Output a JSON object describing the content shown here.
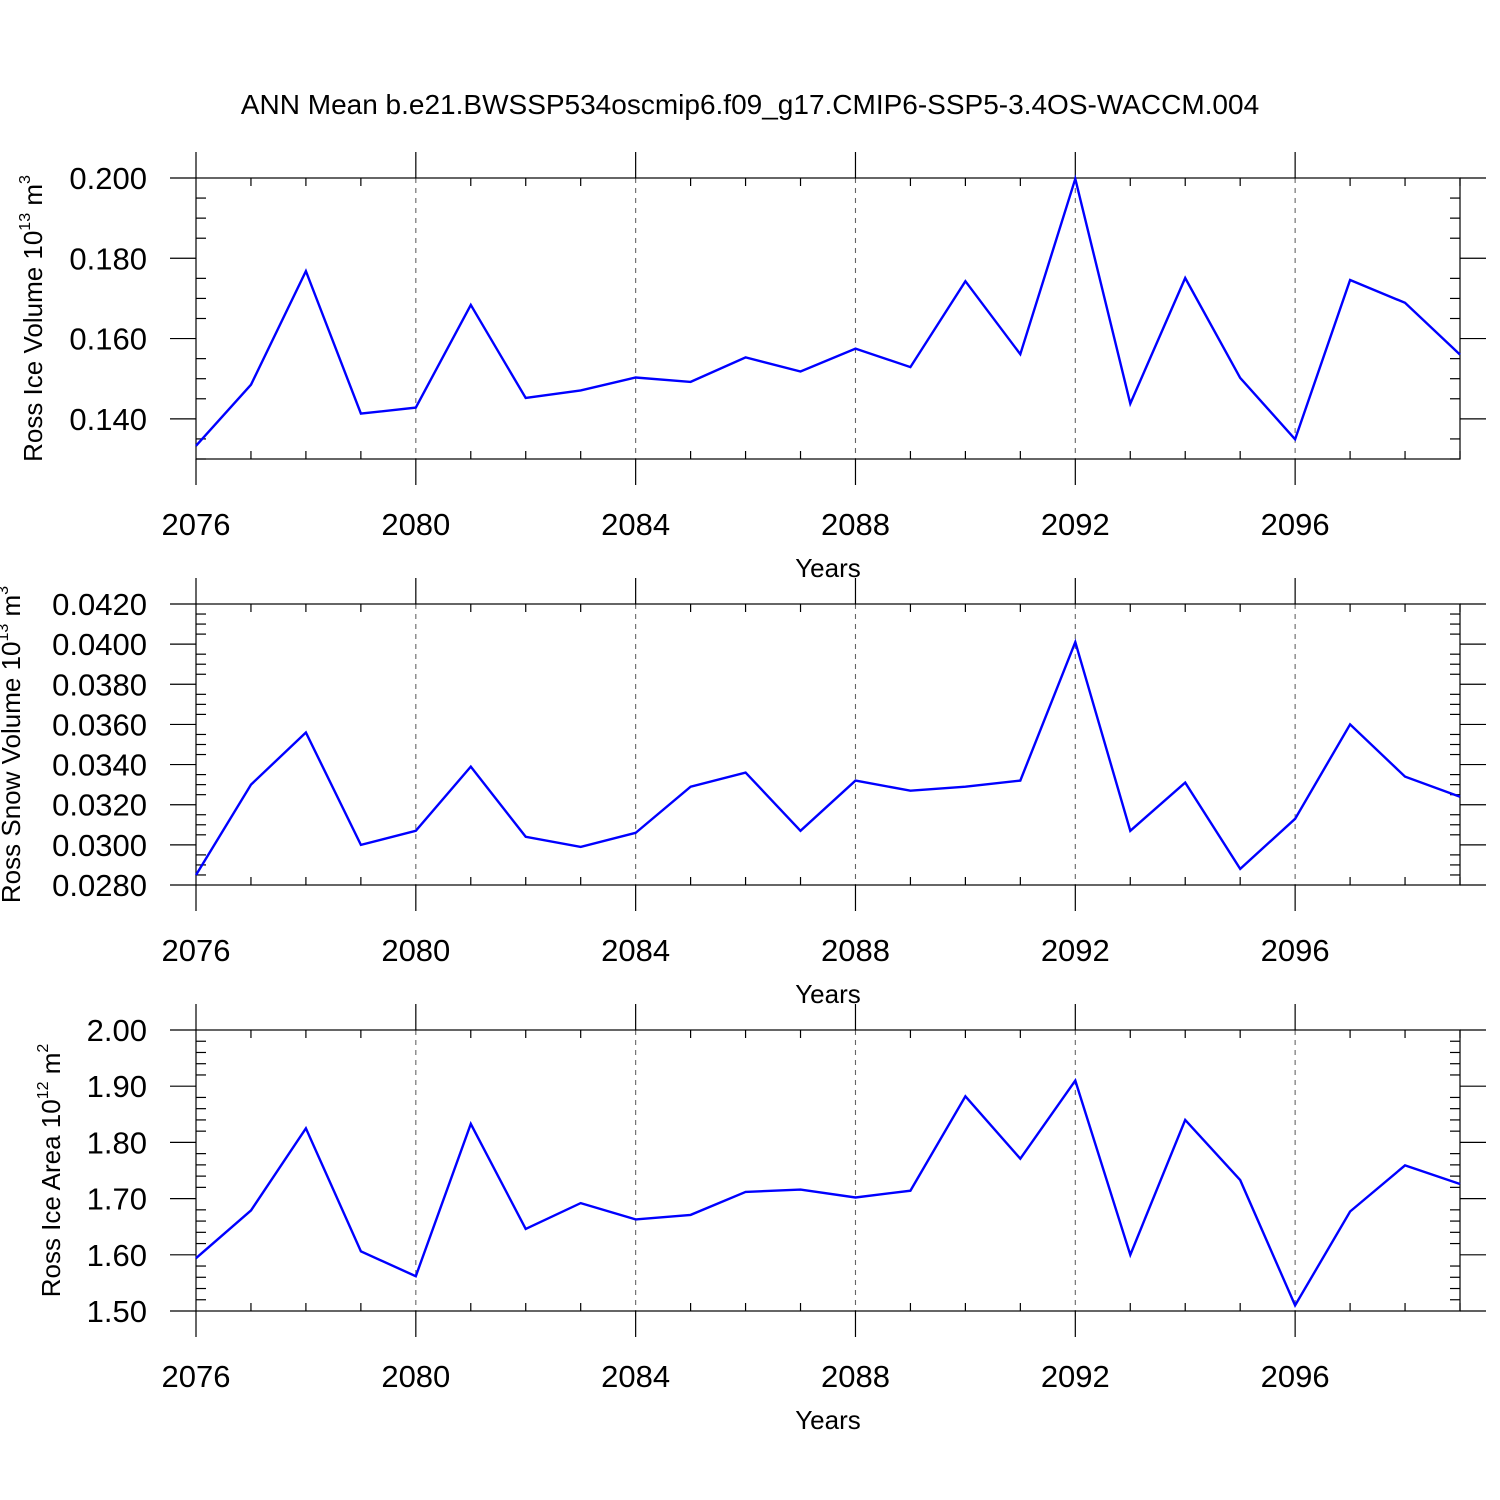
{
  "title": "ANN Mean b.e21.BWSSP534oscmip6.f09_g17.CMIP6-SSP5-3.4OS-WACCM.004",
  "colors": {
    "line": "#0000ff",
    "axis": "#000000",
    "grid": "#666666"
  },
  "chart_data": [
    {
      "type": "line",
      "ylabel": {
        "main": "Ross Ice Volume 10",
        "exp": "13",
        "unit": " m",
        "unit_exp": "3"
      },
      "xlabel": "Years",
      "xlim": [
        2076,
        2099
      ],
      "ylim": [
        0.13,
        0.2
      ],
      "yticks": [
        0.14,
        0.16,
        0.18,
        0.2
      ],
      "ytick_labels": [
        "0.140",
        "0.160",
        "0.180",
        "0.200"
      ],
      "yminor_step": 0.005,
      "xticks": [
        2076,
        2080,
        2084,
        2088,
        2092,
        2096
      ],
      "xtick_labels": [
        "2076",
        "2080",
        "2084",
        "2088",
        "2092",
        "2096"
      ],
      "x": [
        2076,
        2077,
        2078,
        2079,
        2080,
        2081,
        2082,
        2083,
        2084,
        2085,
        2086,
        2087,
        2088,
        2089,
        2090,
        2091,
        2092,
        2093,
        2094,
        2095,
        2096,
        2097,
        2098,
        2099
      ],
      "series": [
        {
          "name": "Ross Ice Volume",
          "values": [
            0.1333,
            0.1485,
            0.1768,
            0.1413,
            0.1428,
            0.1684,
            0.1452,
            0.1471,
            0.1503,
            0.1492,
            0.1553,
            0.1518,
            0.1575,
            0.1529,
            0.1743,
            0.1561,
            0.1998,
            0.1438,
            0.1751,
            0.1502,
            0.1349,
            0.1746,
            0.1689,
            0.156
          ]
        }
      ]
    },
    {
      "type": "line",
      "ylabel": {
        "main": "Ross Snow Volume 10",
        "exp": "13",
        "unit": " m",
        "unit_exp": "3"
      },
      "xlabel": "Years",
      "xlim": [
        2076,
        2099
      ],
      "ylim": [
        0.028,
        0.042
      ],
      "yticks": [
        0.028,
        0.03,
        0.032,
        0.034,
        0.036,
        0.038,
        0.04,
        0.042
      ],
      "ytick_labels": [
        "0.0280",
        "0.0300",
        "0.0320",
        "0.0340",
        "0.0360",
        "0.0380",
        "0.0400",
        "0.0420"
      ],
      "yminor_step": 0.0005,
      "xticks": [
        2076,
        2080,
        2084,
        2088,
        2092,
        2096
      ],
      "xtick_labels": [
        "2076",
        "2080",
        "2084",
        "2088",
        "2092",
        "2096"
      ],
      "x": [
        2076,
        2077,
        2078,
        2079,
        2080,
        2081,
        2082,
        2083,
        2084,
        2085,
        2086,
        2087,
        2088,
        2089,
        2090,
        2091,
        2092,
        2093,
        2094,
        2095,
        2096,
        2097,
        2098,
        2099
      ],
      "series": [
        {
          "name": "Ross Snow Volume",
          "values": [
            0.0285,
            0.033,
            0.0356,
            0.03,
            0.0307,
            0.0339,
            0.0304,
            0.0299,
            0.0306,
            0.0329,
            0.0336,
            0.0307,
            0.0332,
            0.0327,
            0.0329,
            0.0332,
            0.0401,
            0.0307,
            0.0331,
            0.0288,
            0.0313,
            0.036,
            0.0334,
            0.0324
          ]
        }
      ]
    },
    {
      "type": "line",
      "ylabel": {
        "main": "Ross Ice Area 10",
        "exp": "12",
        "unit": " m",
        "unit_exp": "2"
      },
      "xlabel": "Years",
      "xlim": [
        2076,
        2099
      ],
      "ylim": [
        1.5,
        2.0
      ],
      "yticks": [
        1.5,
        1.6,
        1.7,
        1.8,
        1.9,
        2.0
      ],
      "ytick_labels": [
        "1.50",
        "1.60",
        "1.70",
        "1.80",
        "1.90",
        "2.00"
      ],
      "yminor_step": 0.02,
      "xticks": [
        2076,
        2080,
        2084,
        2088,
        2092,
        2096
      ],
      "xtick_labels": [
        "2076",
        "2080",
        "2084",
        "2088",
        "2092",
        "2096"
      ],
      "x": [
        2076,
        2077,
        2078,
        2079,
        2080,
        2081,
        2082,
        2083,
        2084,
        2085,
        2086,
        2087,
        2088,
        2089,
        2090,
        2091,
        2092,
        2093,
        2094,
        2095,
        2096,
        2097,
        2098,
        2099
      ],
      "series": [
        {
          "name": "Ross Ice Area",
          "values": [
            1.594,
            1.679,
            1.825,
            1.606,
            1.562,
            1.833,
            1.646,
            1.692,
            1.663,
            1.671,
            1.712,
            1.716,
            1.702,
            1.714,
            1.882,
            1.771,
            1.91,
            1.6,
            1.84,
            1.733,
            1.51,
            1.677,
            1.759,
            1.726
          ]
        }
      ]
    }
  ]
}
